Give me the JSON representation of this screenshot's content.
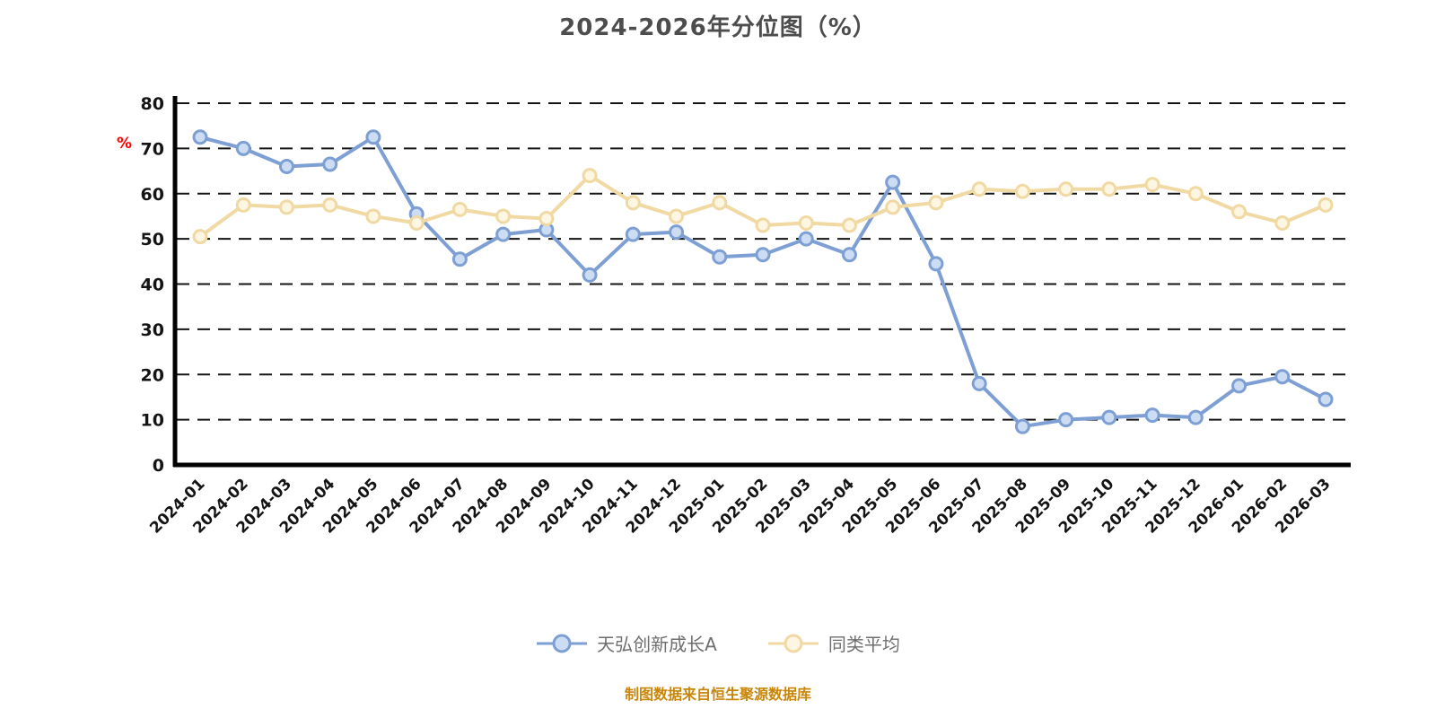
{
  "title": "2024-2026年分位图（%）",
  "y_axis_unit": "%",
  "caption": "制图数据来自恒生聚源数据库",
  "chart_data": {
    "type": "line",
    "title": "2024-2026年分位图（%）",
    "ylabel": "%",
    "xlabel": "",
    "ylim": [
      0,
      80
    ],
    "ytick_step": 10,
    "grid": "dashed-horizontal",
    "legend_position": "bottom",
    "categories": [
      "2024-01",
      "2024-02",
      "2024-03",
      "2024-04",
      "2024-05",
      "2024-06",
      "2024-07",
      "2024-08",
      "2024-09",
      "2024-10",
      "2024-11",
      "2024-12",
      "2025-01",
      "2025-02",
      "2025-03",
      "2025-04",
      "2025-05",
      "2025-06",
      "2025-07",
      "2025-08",
      "2025-09",
      "2025-10",
      "2025-11",
      "2025-12",
      "2026-01",
      "2026-02",
      "2026-03"
    ],
    "series": [
      {
        "name": "天弘创新成长A",
        "color": "#7d9fd4",
        "marker_fill": "#ccdcf2",
        "values": [
          72.5,
          70,
          66,
          66.5,
          72.5,
          55.5,
          45.5,
          51,
          52,
          42,
          51,
          51.5,
          46,
          46.5,
          50,
          46.5,
          62.5,
          44.5,
          18,
          8.5,
          10,
          10.5,
          11,
          10.5,
          17.5,
          19.5,
          14.5
        ]
      },
      {
        "name": "同类平均",
        "color": "#f0d9a2",
        "marker_fill": "#fdf6e2",
        "values": [
          50.5,
          57.5,
          57,
          57.5,
          55,
          53.5,
          56.5,
          55,
          54.5,
          64,
          58,
          55,
          58,
          53,
          53.5,
          53,
          57,
          58,
          61,
          60.5,
          61,
          61,
          62,
          60,
          56,
          53.5,
          57.5
        ]
      }
    ]
  }
}
